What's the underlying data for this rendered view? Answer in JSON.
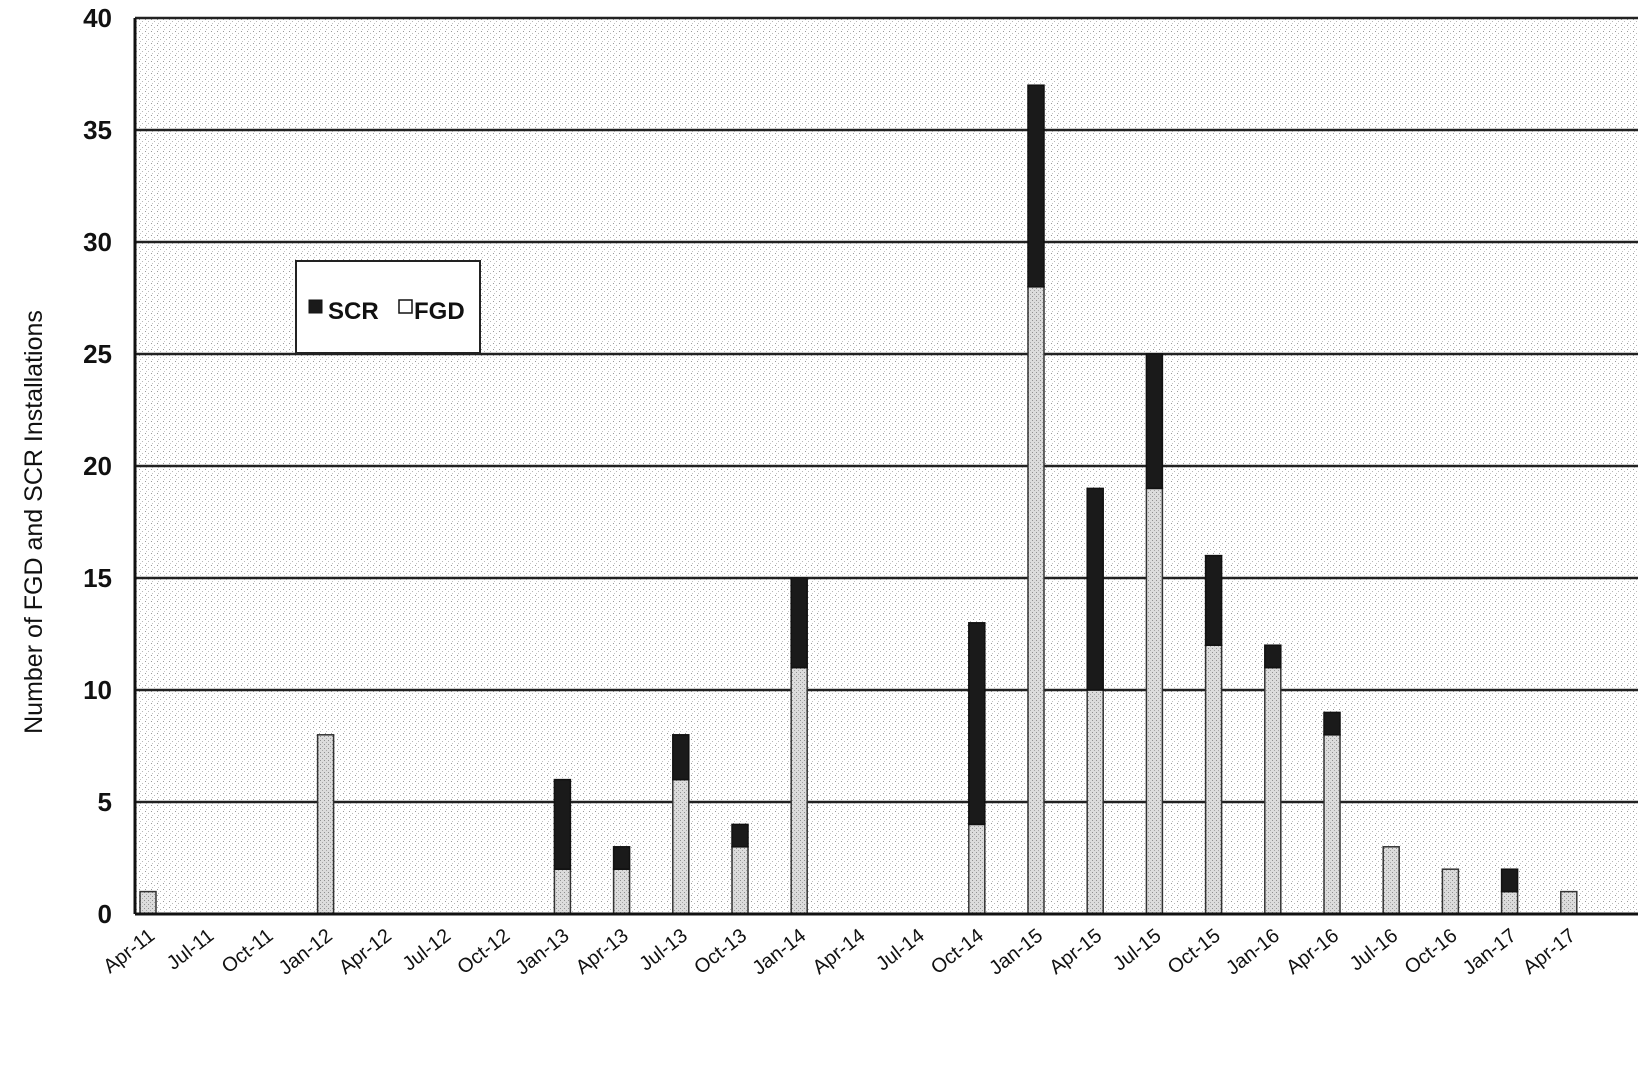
{
  "chart_data": {
    "type": "bar",
    "stacked": true,
    "title": "",
    "xlabel": "",
    "ylabel": "Number of FGD and SCR Installations",
    "ylim": [
      0,
      40
    ],
    "yticks": [
      0,
      5,
      10,
      15,
      20,
      25,
      30,
      35,
      40
    ],
    "grid": true,
    "legend_position": "top-left",
    "categories": [
      "Apr-11",
      "Jul-11",
      "Oct-11",
      "Jan-12",
      "Apr-12",
      "Jul-12",
      "Oct-12",
      "Jan-13",
      "Apr-13",
      "Jul-13",
      "Oct-13",
      "Jan-14",
      "Apr-14",
      "Jul-14",
      "Oct-14",
      "Jan-15",
      "Apr-15",
      "Jul-15",
      "Oct-15",
      "Jan-16",
      "Apr-16",
      "Jul-16",
      "Oct-16",
      "Jan-17",
      "Apr-17"
    ],
    "series": [
      {
        "name": "FGD",
        "color": "#d4d4d4",
        "values": [
          1,
          0,
          0,
          8,
          0,
          0,
          0,
          2,
          2,
          6,
          3,
          11,
          0,
          0,
          4,
          28,
          10,
          19,
          12,
          11,
          8,
          3,
          2,
          1,
          1
        ]
      },
      {
        "name": "SCR",
        "color": "#1a1a1a",
        "values": [
          0,
          0,
          0,
          0,
          0,
          0,
          0,
          4,
          1,
          2,
          1,
          4,
          0,
          0,
          9,
          9,
          9,
          6,
          4,
          1,
          1,
          0,
          0,
          1,
          0
        ]
      }
    ],
    "legend": {
      "items": [
        {
          "label": "SCR",
          "color": "#1a1a1a"
        },
        {
          "label": "FGD",
          "color": "#d4d4d4"
        }
      ]
    }
  }
}
